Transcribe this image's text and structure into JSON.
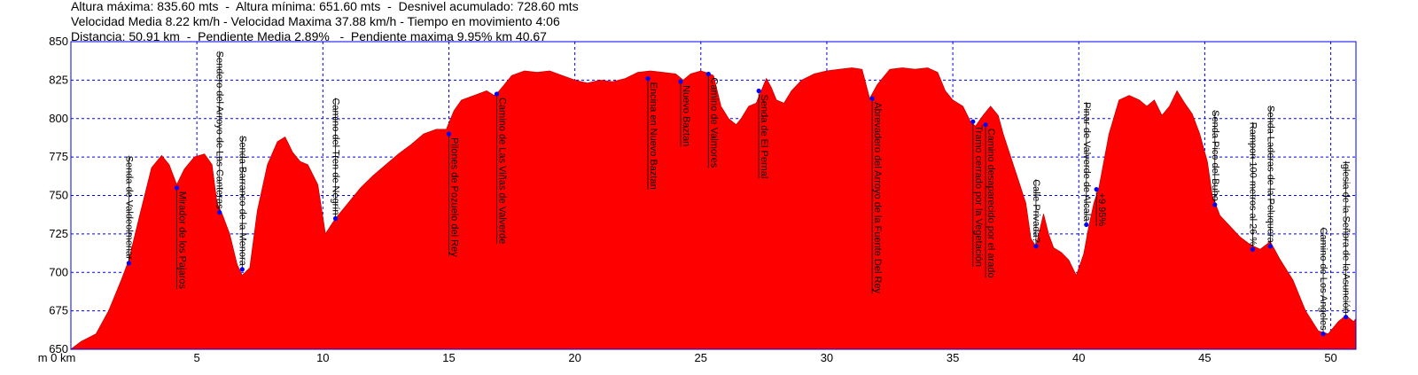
{
  "stats": {
    "line1": "Altura máxima: 835.60 mts  -  Altura mínima: 651.60 mts  -  Desnivel acumulado: 728.60 mts",
    "line2": "Velocidad Media 8.22 km/h - Velocidad Maxima 37.88 km/h - Tiempo en movimiento 4:06",
    "line3": "Distancia: 50.91 km  -  Pendiente Media 2.89%   -  Pendiente maxima 9.95% km 40.67"
  },
  "colors": {
    "fill": "#ff0000",
    "edge": "#cc0000",
    "grid": "#0000ee",
    "point": "#0000ff"
  },
  "chart_data": {
    "type": "area",
    "title": "",
    "xlabel": "",
    "ylabel": "",
    "x_unit": "km",
    "y_unit": "m",
    "xlim": [
      0,
      51
    ],
    "ylim": [
      650,
      850
    ],
    "x_ticks": [
      0,
      5,
      10,
      15,
      20,
      25,
      30,
      35,
      40,
      45,
      50
    ],
    "y_ticks": [
      650,
      675,
      700,
      725,
      750,
      775,
      800,
      825,
      850
    ],
    "grid": true,
    "profile": [
      [
        0,
        650
      ],
      [
        0.4,
        655
      ],
      [
        1.0,
        660
      ],
      [
        1.5,
        675
      ],
      [
        2.0,
        695
      ],
      [
        2.3,
        708
      ],
      [
        2.7,
        735
      ],
      [
        3.2,
        768
      ],
      [
        3.6,
        776
      ],
      [
        3.9,
        770
      ],
      [
        4.2,
        757
      ],
      [
        4.5,
        767
      ],
      [
        4.9,
        775
      ],
      [
        5.3,
        777
      ],
      [
        5.6,
        770
      ],
      [
        5.8,
        745
      ],
      [
        6.0,
        738
      ],
      [
        6.3,
        725
      ],
      [
        6.6,
        705
      ],
      [
        6.8,
        698
      ],
      [
        7.1,
        703
      ],
      [
        7.4,
        740
      ],
      [
        7.8,
        770
      ],
      [
        8.2,
        785
      ],
      [
        8.5,
        788
      ],
      [
        8.8,
        778
      ],
      [
        9.1,
        772
      ],
      [
        9.4,
        770
      ],
      [
        9.8,
        757
      ],
      [
        10.1,
        725
      ],
      [
        10.5,
        735
      ],
      [
        11.0,
        745
      ],
      [
        11.5,
        755
      ],
      [
        12.0,
        763
      ],
      [
        12.5,
        770
      ],
      [
        13.0,
        777
      ],
      [
        13.5,
        783
      ],
      [
        14.0,
        790
      ],
      [
        14.5,
        793
      ],
      [
        14.9,
        793
      ],
      [
        15.2,
        805
      ],
      [
        15.5,
        812
      ],
      [
        16.0,
        815
      ],
      [
        16.5,
        818
      ],
      [
        16.8,
        815
      ],
      [
        17.0,
        818
      ],
      [
        17.2,
        822
      ],
      [
        17.5,
        828
      ],
      [
        18.0,
        831
      ],
      [
        18.5,
        830
      ],
      [
        19.0,
        831
      ],
      [
        19.5,
        828
      ],
      [
        20.0,
        825
      ],
      [
        20.5,
        823
      ],
      [
        21.0,
        825
      ],
      [
        21.5,
        824
      ],
      [
        22.0,
        826
      ],
      [
        22.5,
        830
      ],
      [
        23.0,
        831
      ],
      [
        23.5,
        830
      ],
      [
        24.0,
        829
      ],
      [
        24.3,
        825
      ],
      [
        24.6,
        829
      ],
      [
        25.0,
        831
      ],
      [
        25.2,
        830
      ],
      [
        25.5,
        828
      ],
      [
        25.8,
        808
      ],
      [
        26.1,
        800
      ],
      [
        26.4,
        796
      ],
      [
        26.6,
        800
      ],
      [
        26.9,
        808
      ],
      [
        27.2,
        810
      ],
      [
        27.4,
        818
      ],
      [
        27.6,
        826
      ],
      [
        27.8,
        820
      ],
      [
        28.0,
        812
      ],
      [
        28.3,
        810
      ],
      [
        28.6,
        818
      ],
      [
        29.0,
        825
      ],
      [
        29.5,
        829
      ],
      [
        30.0,
        831
      ],
      [
        30.5,
        832
      ],
      [
        31.0,
        833
      ],
      [
        31.4,
        832
      ],
      [
        31.7,
        813
      ],
      [
        32.0,
        822
      ],
      [
        32.5,
        832
      ],
      [
        33.0,
        833
      ],
      [
        33.5,
        832
      ],
      [
        34.0,
        833
      ],
      [
        34.4,
        830
      ],
      [
        34.7,
        818
      ],
      [
        35.0,
        812
      ],
      [
        35.4,
        808
      ],
      [
        35.7,
        798
      ],
      [
        35.9,
        795
      ],
      [
        36.2,
        802
      ],
      [
        36.5,
        808
      ],
      [
        36.8,
        802
      ],
      [
        37.0,
        790
      ],
      [
        37.3,
        775
      ],
      [
        37.6,
        760
      ],
      [
        37.9,
        745
      ],
      [
        38.1,
        722
      ],
      [
        38.3,
        717
      ],
      [
        38.6,
        738
      ],
      [
        38.8,
        725
      ],
      [
        39.0,
        716
      ],
      [
        39.3,
        713
      ],
      [
        39.6,
        708
      ],
      [
        39.9,
        698
      ],
      [
        40.2,
        712
      ],
      [
        40.4,
        730
      ],
      [
        40.6,
        745
      ],
      [
        40.8,
        755
      ],
      [
        41.2,
        790
      ],
      [
        41.6,
        812
      ],
      [
        42.0,
        815
      ],
      [
        42.4,
        812
      ],
      [
        42.7,
        808
      ],
      [
        43.0,
        812
      ],
      [
        43.3,
        802
      ],
      [
        43.6,
        808
      ],
      [
        43.9,
        818
      ],
      [
        44.2,
        810
      ],
      [
        44.5,
        803
      ],
      [
        44.8,
        790
      ],
      [
        45.1,
        772
      ],
      [
        45.3,
        750
      ],
      [
        45.6,
        737
      ],
      [
        46.0,
        730
      ],
      [
        46.4,
        723
      ],
      [
        46.8,
        718
      ],
      [
        47.2,
        715
      ],
      [
        47.6,
        720
      ],
      [
        48.0,
        708
      ],
      [
        48.5,
        695
      ],
      [
        49.0,
        675
      ],
      [
        49.5,
        662
      ],
      [
        49.9,
        660
      ],
      [
        50.3,
        668
      ],
      [
        50.6,
        672
      ],
      [
        50.91,
        668
      ],
      [
        51,
        670
      ]
    ],
    "waypoints": [
      {
        "km": 2.3,
        "alt": 706,
        "label": "Senda de Valdeolmenar",
        "side": "above"
      },
      {
        "km": 4.2,
        "alt": 755,
        "label": "Mirador de los Pajaros",
        "side": "below"
      },
      {
        "km": 5.9,
        "alt": 739,
        "label": "Sendero del Arroyo de Las Canteras",
        "side": "above"
      },
      {
        "km": 6.8,
        "alt": 702,
        "label": "Senda Barranco de la Menora",
        "side": "above"
      },
      {
        "km": 10.5,
        "alt": 735,
        "label": "Camino del Tren de Negrín",
        "side": "above"
      },
      {
        "km": 15.0,
        "alt": 790,
        "label": "Pilones de Pozuelo del Rey",
        "side": "below"
      },
      {
        "km": 16.9,
        "alt": 816,
        "label": "Camino de Las Viñas de Valverde",
        "side": "below"
      },
      {
        "km": 22.9,
        "alt": 826,
        "label": "Encina en Nuevo Baztan",
        "side": "below"
      },
      {
        "km": 24.2,
        "alt": 824,
        "label": "Nuevo Baztan",
        "side": "below"
      },
      {
        "km": 25.3,
        "alt": 829,
        "label": "Camino de Valmores",
        "side": "below"
      },
      {
        "km": 27.3,
        "alt": 818,
        "label": "Senda de El Pernal",
        "side": "below"
      },
      {
        "km": 31.8,
        "alt": 813,
        "label": "Abrevadero del Arroyo de la Fuente Del Rey",
        "side": "below"
      },
      {
        "km": 35.8,
        "alt": 798,
        "label": "Tramo cerrado por la Vegetación",
        "side": "below"
      },
      {
        "km": 36.3,
        "alt": 796,
        "label": "Camino desaparecido por el arado",
        "side": "below"
      },
      {
        "km": 38.3,
        "alt": 717,
        "label": "Calle Privada?",
        "side": "above"
      },
      {
        "km": 40.3,
        "alt": 731,
        "label": "Pinar de Valverde de Alcala",
        "side": "above"
      },
      {
        "km": 40.7,
        "alt": 754,
        "label": "+9.95%",
        "side": "below"
      },
      {
        "km": 45.4,
        "alt": 744,
        "label": "Senda Pico del Buho",
        "side": "above"
      },
      {
        "km": 46.9,
        "alt": 715,
        "label": "Rampon 100 metros al 26 %",
        "side": "above"
      },
      {
        "km": 47.6,
        "alt": 717,
        "label": "Senda Laderas de la Peluquera",
        "side": "above"
      },
      {
        "km": 49.7,
        "alt": 660,
        "label": "Camino de Los Angeles",
        "side": "above"
      },
      {
        "km": 50.6,
        "alt": 671,
        "label": "Iglesia de la Señora de la Asunción",
        "side": "above"
      }
    ]
  }
}
